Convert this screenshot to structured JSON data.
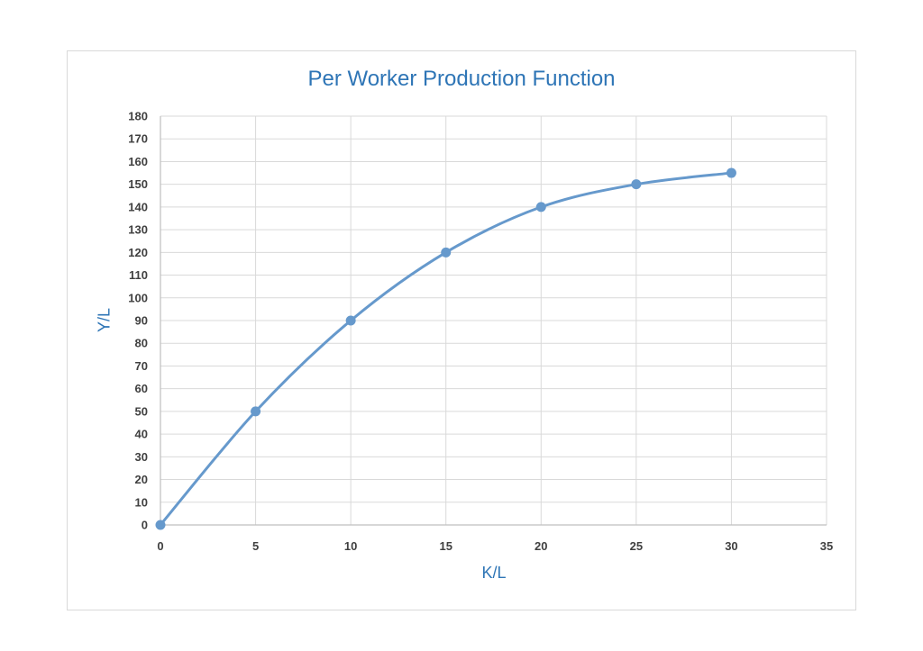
{
  "chart_data": {
    "type": "scatter",
    "title": "Per Worker Production Function",
    "xlabel": "K/L",
    "ylabel": "Y/L",
    "xlim": [
      0,
      35
    ],
    "ylim": [
      0,
      180
    ],
    "x_ticks": [
      0,
      5,
      10,
      15,
      20,
      25,
      30,
      35
    ],
    "y_ticks": [
      0,
      10,
      20,
      30,
      40,
      50,
      60,
      70,
      80,
      90,
      100,
      110,
      120,
      130,
      140,
      150,
      160,
      170,
      180
    ],
    "grid": true,
    "line_style": "smooth",
    "series": [
      {
        "x": [
          0,
          5,
          10,
          15,
          20,
          25,
          30
        ],
        "y": [
          0,
          50,
          90,
          120,
          140,
          150,
          155
        ],
        "color": "#6699cc"
      }
    ]
  }
}
